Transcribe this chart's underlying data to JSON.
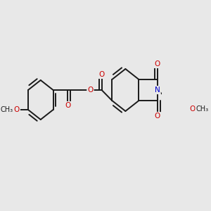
{
  "bg_color": "#e8e8e8",
  "bond_color": "#1a1a1a",
  "o_color": "#cc0000",
  "n_color": "#0000cc",
  "bond_width": 1.4,
  "dbo": 0.008,
  "font_size": 7.5,
  "fig_size": [
    3.0,
    3.0
  ],
  "dpi": 100,
  "xlim": [
    0,
    300
  ],
  "ylim": [
    0,
    300
  ]
}
